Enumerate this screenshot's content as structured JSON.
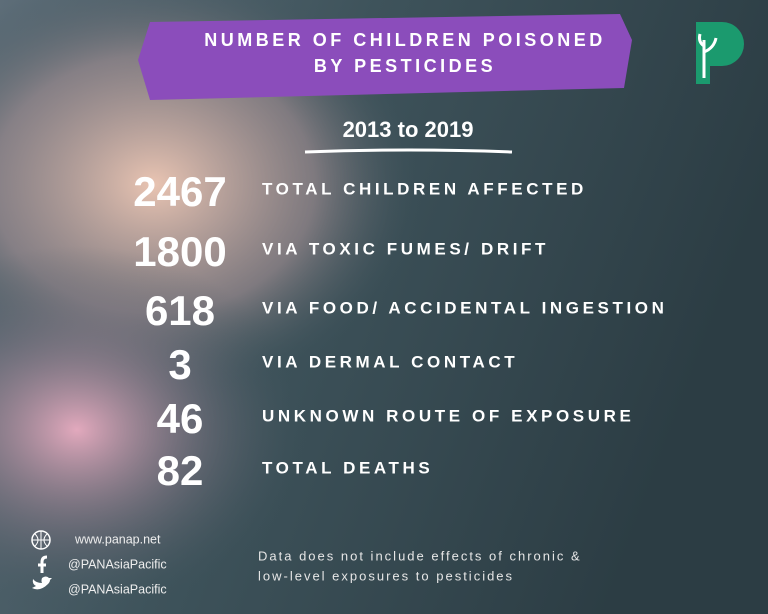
{
  "header": {
    "title_lines": [
      "NUMBER OF CHILDREN POISONED",
      "BY PESTICIDES"
    ],
    "subtitle": "2013 to 2019"
  },
  "stats": [
    {
      "number": 2467,
      "label": "TOTAL CHILDREN AFFECTED"
    },
    {
      "number": 1800,
      "label": "VIA TOXIC FUMES/ DRIFT"
    },
    {
      "number": 618,
      "label": "VIA FOOD/ ACCIDENTAL INGESTION"
    },
    {
      "number": 3,
      "label": "VIA DERMAL CONTACT"
    },
    {
      "number": 46,
      "label": "UNKNOWN ROUTE OF EXPOSURE"
    },
    {
      "number": 82,
      "label": "TOTAL DEATHS"
    }
  ],
  "footer": {
    "links": [
      "www.panap.net",
      "@PANAsiaPacific",
      "@PANAsiaPacific"
    ],
    "note_lines": [
      "Data does not include effects of chronic &",
      "low-level exposures to pesticides"
    ]
  }
}
